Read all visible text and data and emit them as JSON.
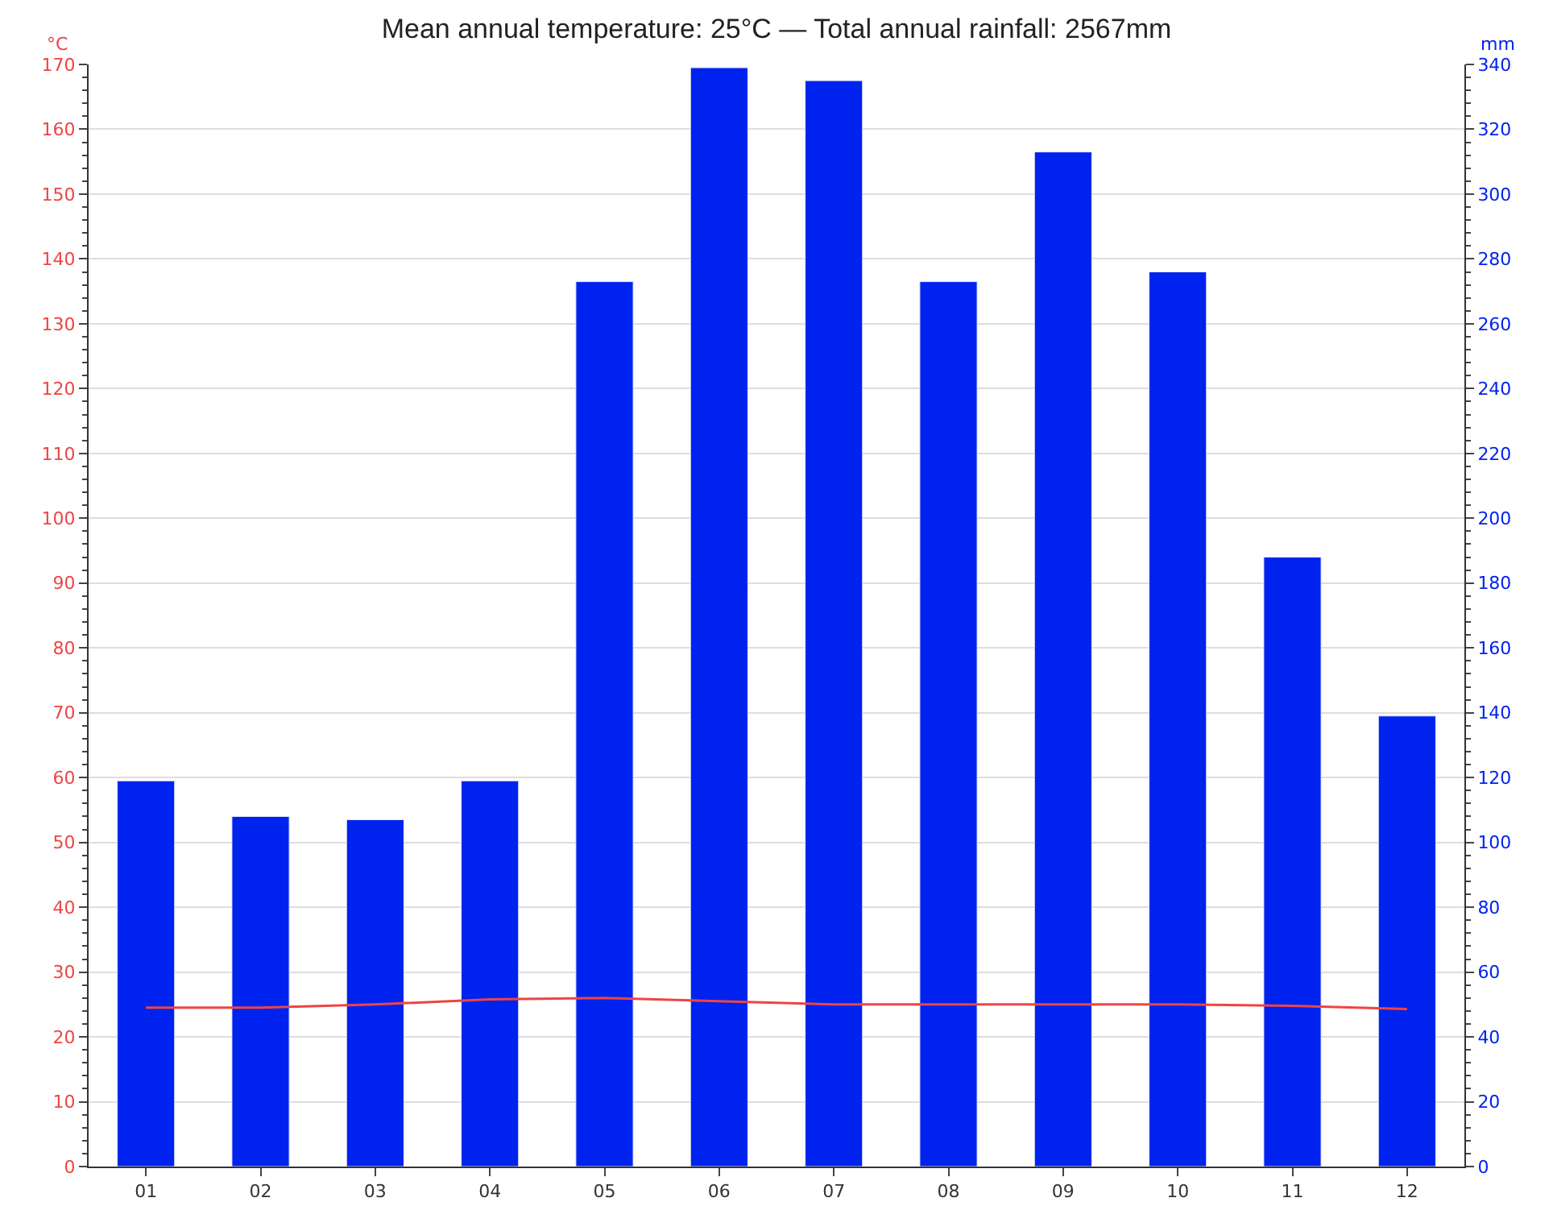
{
  "chart_data": {
    "type": "bar",
    "title": "Mean annual temperature: 25°C — Total annual rainfall: 2567mm",
    "categories": [
      "01",
      "02",
      "03",
      "04",
      "05",
      "06",
      "07",
      "08",
      "09",
      "10",
      "11",
      "12"
    ],
    "ylabel": "°C",
    "y2label": "mm",
    "ylim": [
      0,
      170
    ],
    "yticks": [
      0,
      10,
      20,
      30,
      40,
      50,
      60,
      70,
      80,
      90,
      100,
      110,
      120,
      130,
      140,
      150,
      160,
      170
    ],
    "y2lim": [
      0,
      340
    ],
    "y2ticks": [
      0,
      20,
      40,
      60,
      80,
      100,
      120,
      140,
      160,
      180,
      200,
      220,
      240,
      260,
      280,
      300,
      320,
      340
    ],
    "grid": "y",
    "series": [
      {
        "axis": "y2",
        "color": "#0022ee",
        "values": [
          119,
          108,
          107,
          119,
          273,
          339,
          335,
          273,
          313,
          276,
          188,
          139
        ]
      },
      {
        "type": "line",
        "axis": "y",
        "color": "#ee4444",
        "marker": "none",
        "line_style": "solid",
        "values": [
          24.5,
          24.5,
          25,
          25.8,
          26,
          25.5,
          25,
          25,
          25,
          25,
          24.8,
          24.3
        ]
      }
    ]
  }
}
